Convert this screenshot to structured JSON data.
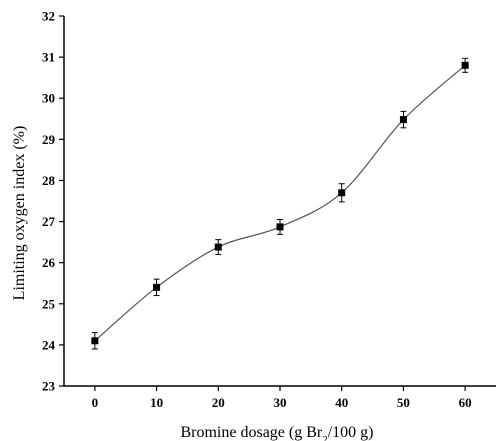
{
  "chart_data": {
    "type": "line",
    "xlabel": "Bromine dosage (g Br",
    "xlabel_sub": "2",
    "xlabel_tail": "/100 g)",
    "ylabel": "Limiting oxygen index (%)",
    "xlim": [
      -5,
      65
    ],
    "ylim": [
      23,
      32
    ],
    "x_ticks": [
      0,
      10,
      20,
      30,
      40,
      50,
      60
    ],
    "y_ticks": [
      23,
      24,
      25,
      26,
      27,
      28,
      29,
      30,
      31,
      32
    ],
    "grid": false,
    "series": [
      {
        "x": [
          0,
          10,
          20,
          30,
          40,
          50,
          60
        ],
        "y": [
          24.1,
          25.4,
          26.38,
          26.87,
          27.7,
          29.48,
          30.8
        ],
        "error": [
          0.2,
          0.2,
          0.18,
          0.18,
          0.22,
          0.2,
          0.17
        ],
        "marker": "square",
        "color": "#000000",
        "line_color": "#555555"
      }
    ]
  }
}
